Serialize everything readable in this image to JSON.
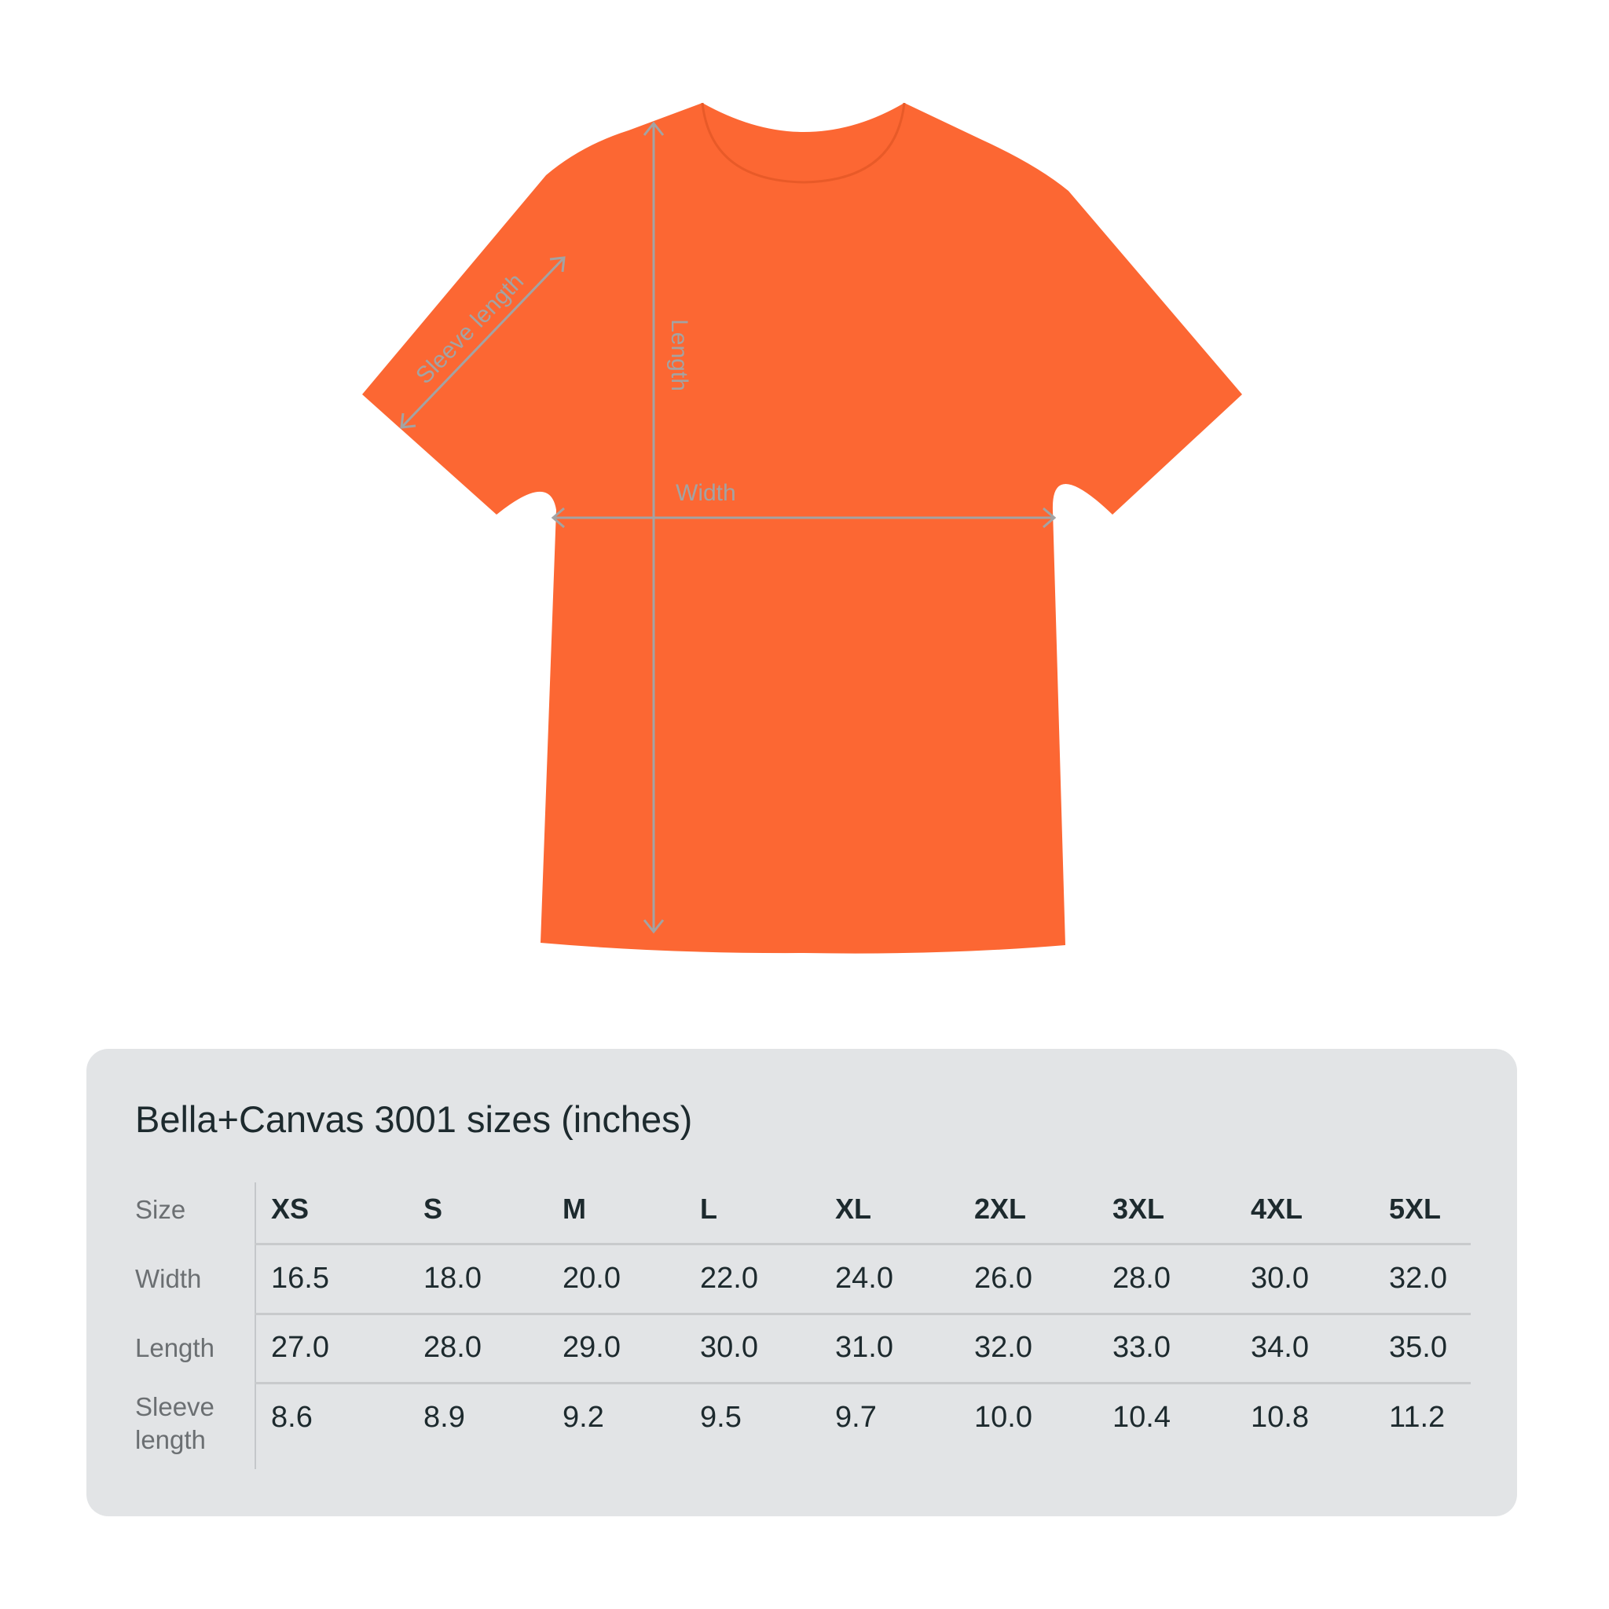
{
  "colors": {
    "shirt": "#fc6733",
    "measure_lines": "#a3a3a3",
    "panel_bg": "#e2e4e6",
    "text_dark": "#1d2a2e",
    "text_label": "#6b6f72"
  },
  "diagram": {
    "sleeve_label": "Sleeve length",
    "length_label": "Length",
    "width_label": "Width"
  },
  "size_table": {
    "title": "Bella+Canvas 3001 sizes (inches)",
    "row_labels": [
      "Size",
      "Width",
      "Length",
      "Sleeve length"
    ],
    "sizes": [
      "XS",
      "S",
      "M",
      "L",
      "XL",
      "2XL",
      "3XL",
      "4XL",
      "5XL"
    ],
    "width": [
      "16.5",
      "18.0",
      "20.0",
      "22.0",
      "24.0",
      "26.0",
      "28.0",
      "30.0",
      "32.0"
    ],
    "length": [
      "27.0",
      "28.0",
      "29.0",
      "30.0",
      "31.0",
      "32.0",
      "33.0",
      "34.0",
      "35.0"
    ],
    "sleeve_length": [
      "8.6",
      "8.9",
      "9.2",
      "9.5",
      "9.7",
      "10.0",
      "10.4",
      "10.8",
      "11.2"
    ]
  }
}
